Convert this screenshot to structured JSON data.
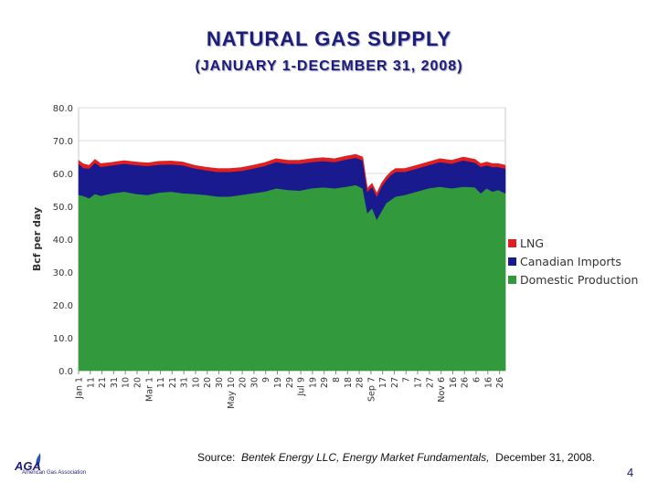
{
  "slide": {
    "title": "NATURAL GAS SUPPLY",
    "subtitle": "(JANUARY 1-DECEMBER 31, 2008)",
    "source_prefix": "Source:  ",
    "source_publisher": "Bentek Energy LLC, Energy Market Fundamentals,",
    "source_date": "  December 31, 2008.",
    "page_number": "4",
    "logo": {
      "mark": "AGA",
      "name": "American Gas Association",
      "color": "#1c1c7a"
    }
  },
  "chart_data": {
    "type": "area",
    "stacked": true,
    "title": "",
    "xlabel": "",
    "ylabel": "Bcf per day",
    "ylim": [
      0,
      80
    ],
    "y_ticks": [
      "0.0",
      "10.0",
      "20.0",
      "30.0",
      "40.0",
      "50.0",
      "60.0",
      "70.0",
      "80.0"
    ],
    "grid": true,
    "legend_position": "right",
    "x_tick_labels": [
      "Jan 1",
      "11",
      "21",
      "31",
      "10",
      "20",
      "Mar 1",
      "11",
      "21",
      "31",
      "10",
      "20",
      "30",
      "May 10",
      "20",
      "30",
      "9",
      "19",
      "29",
      "Jul 9",
      "19",
      "29",
      "8",
      "18",
      "28",
      "Sep 7",
      "17",
      "27",
      "7",
      "17",
      "27",
      "Nov 6",
      "16",
      "26",
      "6",
      "16",
      "26"
    ],
    "x_tick_days": [
      1,
      11,
      21,
      31,
      41,
      51,
      61,
      71,
      81,
      91,
      101,
      111,
      121,
      131,
      141,
      151,
      161,
      171,
      181,
      191,
      201,
      211,
      221,
      231,
      241,
      251,
      261,
      271,
      281,
      291,
      301,
      311,
      321,
      331,
      341,
      351,
      361
    ],
    "x_range_days": [
      1,
      366
    ],
    "series": [
      {
        "name": "Domestic Production",
        "color": "#33993d",
        "x_days": [
          1,
          5,
          10,
          15,
          20,
          30,
          40,
          50,
          60,
          70,
          80,
          90,
          100,
          110,
          120,
          130,
          140,
          150,
          160,
          170,
          180,
          190,
          200,
          210,
          220,
          230,
          238,
          244,
          248,
          252,
          256,
          260,
          264,
          268,
          272,
          280,
          290,
          300,
          310,
          320,
          330,
          340,
          345,
          350,
          355,
          360,
          366
        ],
        "values": [
          53.5,
          53.2,
          52.5,
          53.8,
          53.2,
          54.0,
          54.5,
          53.8,
          53.5,
          54.2,
          54.5,
          54.0,
          53.8,
          53.5,
          53.0,
          53.0,
          53.5,
          54.0,
          54.5,
          55.5,
          55.0,
          54.8,
          55.5,
          55.8,
          55.5,
          56.0,
          56.5,
          55.5,
          48.0,
          49.5,
          46.0,
          48.5,
          51.0,
          52.0,
          53.0,
          53.5,
          54.5,
          55.5,
          56.0,
          55.5,
          56.0,
          55.8,
          54.0,
          55.5,
          54.5,
          55.0,
          54.0
        ]
      },
      {
        "name": "Canadian Imports",
        "color": "#1a1a8f",
        "x_days": [
          1,
          5,
          10,
          15,
          20,
          30,
          40,
          50,
          60,
          70,
          80,
          90,
          100,
          110,
          120,
          130,
          140,
          150,
          160,
          170,
          180,
          190,
          200,
          210,
          220,
          230,
          238,
          244,
          248,
          252,
          256,
          260,
          264,
          268,
          272,
          280,
          290,
          300,
          310,
          320,
          330,
          340,
          345,
          350,
          355,
          360,
          366
        ],
        "values": [
          9.5,
          8.5,
          9.0,
          9.5,
          8.8,
          8.5,
          8.5,
          8.8,
          8.8,
          8.5,
          8.3,
          8.5,
          7.8,
          7.5,
          7.5,
          7.5,
          7.3,
          7.5,
          7.8,
          8.0,
          8.0,
          8.2,
          8.0,
          8.0,
          8.0,
          8.3,
          8.3,
          8.5,
          6.5,
          6.5,
          7.0,
          7.5,
          7.0,
          7.5,
          7.5,
          7.0,
          7.0,
          7.0,
          7.5,
          7.5,
          8.0,
          7.5,
          8.0,
          7.0,
          7.5,
          7.0,
          7.5
        ]
      },
      {
        "name": "LNG",
        "color": "#e02020",
        "x_days": [
          1,
          5,
          10,
          15,
          20,
          30,
          40,
          50,
          60,
          70,
          80,
          90,
          100,
          110,
          120,
          130,
          140,
          150,
          160,
          170,
          180,
          190,
          200,
          210,
          220,
          230,
          238,
          244,
          248,
          252,
          256,
          260,
          264,
          268,
          272,
          280,
          290,
          300,
          310,
          320,
          330,
          340,
          345,
          350,
          355,
          360,
          366
        ],
        "values": [
          1.0,
          1.2,
          1.0,
          1.0,
          1.0,
          0.9,
          0.9,
          0.9,
          0.9,
          1.0,
          1.0,
          1.0,
          0.9,
          0.9,
          1.0,
          1.0,
          1.0,
          1.0,
          1.0,
          1.0,
          1.0,
          1.0,
          1.0,
          1.0,
          1.0,
          1.0,
          1.0,
          1.0,
          1.0,
          1.0,
          1.0,
          1.0,
          1.0,
          1.0,
          1.0,
          1.0,
          1.0,
          1.0,
          1.0,
          1.0,
          1.0,
          1.0,
          1.0,
          1.0,
          1.0,
          1.0,
          1.0
        ]
      }
    ],
    "legend_order": [
      "LNG",
      "Canadian Imports",
      "Domestic Production"
    ]
  }
}
